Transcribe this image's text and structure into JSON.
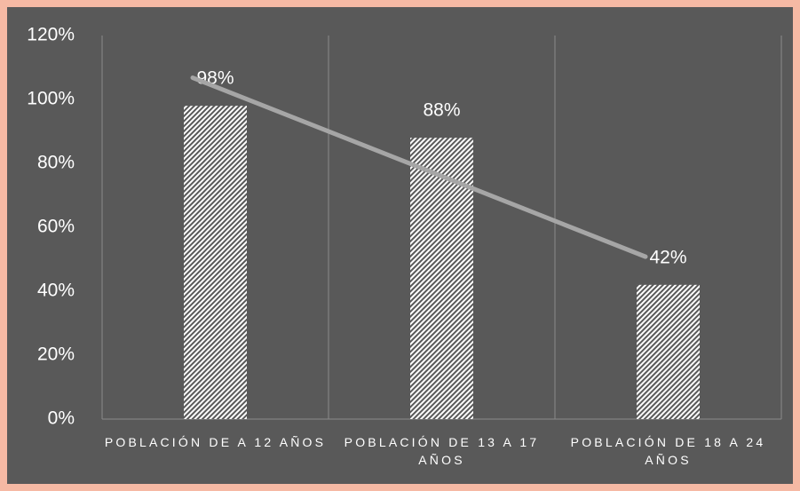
{
  "chart_data": {
    "type": "bar",
    "categories": [
      "POBLACIÓN DE  A 12 AÑOS",
      "POBLACIÓN DE 13 A 17 AÑOS",
      "POBLACIÓN DE 18 A 24 AÑOS"
    ],
    "values": [
      98,
      88,
      42
    ],
    "value_labels": [
      "98%",
      "88%",
      "42%"
    ],
    "color": "#ffffff",
    "ylim": [
      0,
      120
    ],
    "yticks": [
      {
        "value": 0,
        "label": "0%"
      },
      {
        "value": 20,
        "label": "20%"
      },
      {
        "value": 40,
        "label": "40%"
      },
      {
        "value": 60,
        "label": "60%"
      },
      {
        "value": 80,
        "label": "80%"
      },
      {
        "value": 100,
        "label": "100%"
      },
      {
        "value": 120,
        "label": "120%"
      }
    ],
    "trendline": true,
    "trendline_color": "#a6a6a6",
    "grid": "vertical"
  }
}
